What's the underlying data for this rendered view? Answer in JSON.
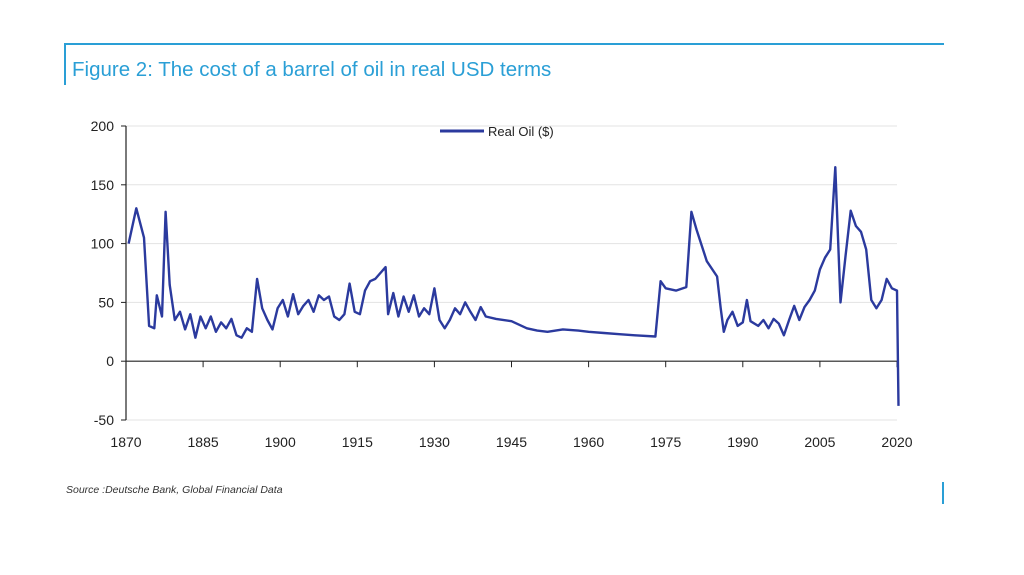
{
  "figure": {
    "title": "Figure 2: The cost of a barrel of oil in real USD terms",
    "source": "Source :Deutsche Bank, Global Financial Data",
    "accent_color": "#2a9fd6"
  },
  "chart_data": {
    "type": "line",
    "xlim": [
      1870,
      2020
    ],
    "ylim": [
      -50,
      200
    ],
    "x_ticks": [
      1870,
      1885,
      1900,
      1915,
      1930,
      1945,
      1960,
      1975,
      1990,
      2005,
      2020
    ],
    "y_ticks": [
      200,
      150,
      100,
      50,
      0,
      -50
    ],
    "grid": "horizontal",
    "legend": "top-center",
    "series": [
      {
        "name": "Real Oil ($)",
        "color": "#2b3a9e",
        "points": [
          [
            1870.5,
            100
          ],
          [
            1872,
            130
          ],
          [
            1873.5,
            105
          ],
          [
            1874.5,
            30
          ],
          [
            1875.5,
            28
          ],
          [
            1876,
            56
          ],
          [
            1877,
            38
          ],
          [
            1877.7,
            127
          ],
          [
            1878.5,
            65
          ],
          [
            1879.5,
            35
          ],
          [
            1880.5,
            42
          ],
          [
            1881.5,
            27
          ],
          [
            1882.5,
            40
          ],
          [
            1883.5,
            20
          ],
          [
            1884.5,
            38
          ],
          [
            1885.5,
            28
          ],
          [
            1886.5,
            38
          ],
          [
            1887.5,
            25
          ],
          [
            1888.5,
            33
          ],
          [
            1889.5,
            28
          ],
          [
            1890.5,
            36
          ],
          [
            1891.5,
            22
          ],
          [
            1892.5,
            20
          ],
          [
            1893.5,
            28
          ],
          [
            1894.5,
            25
          ],
          [
            1895.5,
            70
          ],
          [
            1896.5,
            45
          ],
          [
            1897.5,
            35
          ],
          [
            1898.5,
            27
          ],
          [
            1899.5,
            45
          ],
          [
            1900.5,
            52
          ],
          [
            1901.5,
            38
          ],
          [
            1902.5,
            57
          ],
          [
            1903.5,
            40
          ],
          [
            1904.5,
            47
          ],
          [
            1905.5,
            52
          ],
          [
            1906.5,
            42
          ],
          [
            1907.5,
            56
          ],
          [
            1908.5,
            52
          ],
          [
            1909.5,
            55
          ],
          [
            1910.5,
            38
          ],
          [
            1911.5,
            35
          ],
          [
            1912.5,
            40
          ],
          [
            1913.5,
            66
          ],
          [
            1914.5,
            42
          ],
          [
            1915.5,
            40
          ],
          [
            1916.5,
            60
          ],
          [
            1917.5,
            68
          ],
          [
            1918.5,
            70
          ],
          [
            1919.5,
            75
          ],
          [
            1920.5,
            80
          ],
          [
            1921,
            40
          ],
          [
            1922,
            58
          ],
          [
            1923,
            38
          ],
          [
            1924,
            55
          ],
          [
            1925,
            42
          ],
          [
            1926,
            56
          ],
          [
            1927,
            38
          ],
          [
            1928,
            45
          ],
          [
            1929,
            40
          ],
          [
            1930,
            62
          ],
          [
            1931,
            35
          ],
          [
            1932,
            28
          ],
          [
            1933,
            35
          ],
          [
            1934,
            45
          ],
          [
            1935,
            40
          ],
          [
            1936,
            50
          ],
          [
            1937,
            42
          ],
          [
            1938,
            35
          ],
          [
            1939,
            46
          ],
          [
            1940,
            38
          ],
          [
            1942,
            36
          ],
          [
            1945,
            34
          ],
          [
            1948,
            28
          ],
          [
            1950,
            26
          ],
          [
            1952,
            25
          ],
          [
            1955,
            27
          ],
          [
            1958,
            26
          ],
          [
            1960,
            25
          ],
          [
            1963,
            24
          ],
          [
            1966,
            23
          ],
          [
            1969,
            22
          ],
          [
            1973,
            21
          ],
          [
            1974,
            68
          ],
          [
            1975,
            62
          ],
          [
            1977,
            60
          ],
          [
            1979,
            63
          ],
          [
            1980,
            127
          ],
          [
            1981,
            112
          ],
          [
            1983,
            85
          ],
          [
            1985,
            72
          ],
          [
            1985.7,
            45
          ],
          [
            1986.3,
            25
          ],
          [
            1987,
            35
          ],
          [
            1988,
            42
          ],
          [
            1989,
            30
          ],
          [
            1990,
            33
          ],
          [
            1990.8,
            52
          ],
          [
            1991.5,
            34
          ],
          [
            1993,
            30
          ],
          [
            1994,
            35
          ],
          [
            1995,
            28
          ],
          [
            1996,
            36
          ],
          [
            1997,
            32
          ],
          [
            1998,
            22
          ],
          [
            1999,
            35
          ],
          [
            2000,
            47
          ],
          [
            2001,
            35
          ],
          [
            2002,
            46
          ],
          [
            2003,
            52
          ],
          [
            2004,
            60
          ],
          [
            2005,
            78
          ],
          [
            2006,
            88
          ],
          [
            2007,
            95
          ],
          [
            2008,
            165
          ],
          [
            2009,
            50
          ],
          [
            2010,
            90
          ],
          [
            2011,
            128
          ],
          [
            2012,
            115
          ],
          [
            2013,
            110
          ],
          [
            2014,
            95
          ],
          [
            2015,
            52
          ],
          [
            2016,
            45
          ],
          [
            2017,
            52
          ],
          [
            2018,
            70
          ],
          [
            2019,
            62
          ],
          [
            2020,
            60
          ],
          [
            2020.3,
            -38
          ]
        ]
      }
    ]
  }
}
